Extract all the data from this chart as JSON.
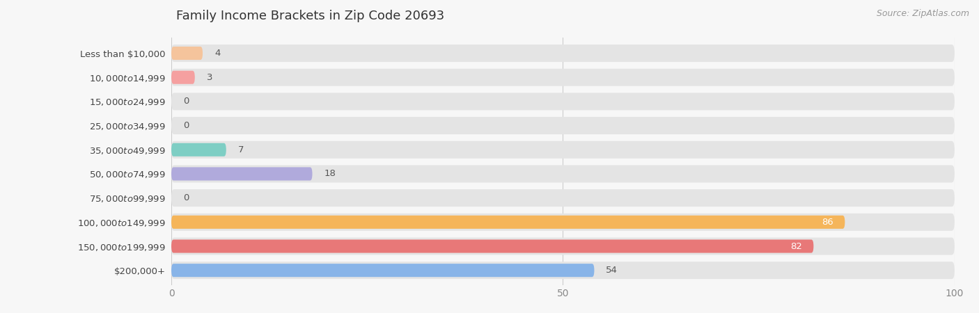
{
  "title": "Family Income Brackets in Zip Code 20693",
  "source": "Source: ZipAtlas.com",
  "categories": [
    "Less than $10,000",
    "$10,000 to $14,999",
    "$15,000 to $24,999",
    "$25,000 to $34,999",
    "$35,000 to $49,999",
    "$50,000 to $74,999",
    "$75,000 to $99,999",
    "$100,000 to $149,999",
    "$150,000 to $199,999",
    "$200,000+"
  ],
  "values": [
    4,
    3,
    0,
    0,
    7,
    18,
    0,
    86,
    82,
    54
  ],
  "bar_colors": [
    "#F5C49C",
    "#F5A0A0",
    "#A8C8F0",
    "#C8A8D8",
    "#7ECEC4",
    "#B0AADC",
    "#F8A8C0",
    "#F5B55A",
    "#E87878",
    "#88B4E8"
  ],
  "background_color": "#f7f7f7",
  "bar_background_color": "#e4e4e4",
  "xlim": [
    0,
    100
  ],
  "xticks": [
    0,
    50,
    100
  ],
  "label_color_dark": "#555555",
  "label_color_white": "#ffffff",
  "title_fontsize": 13,
  "tick_fontsize": 10,
  "label_fontsize": 9.5,
  "source_fontsize": 9,
  "value_fontsize": 9.5
}
